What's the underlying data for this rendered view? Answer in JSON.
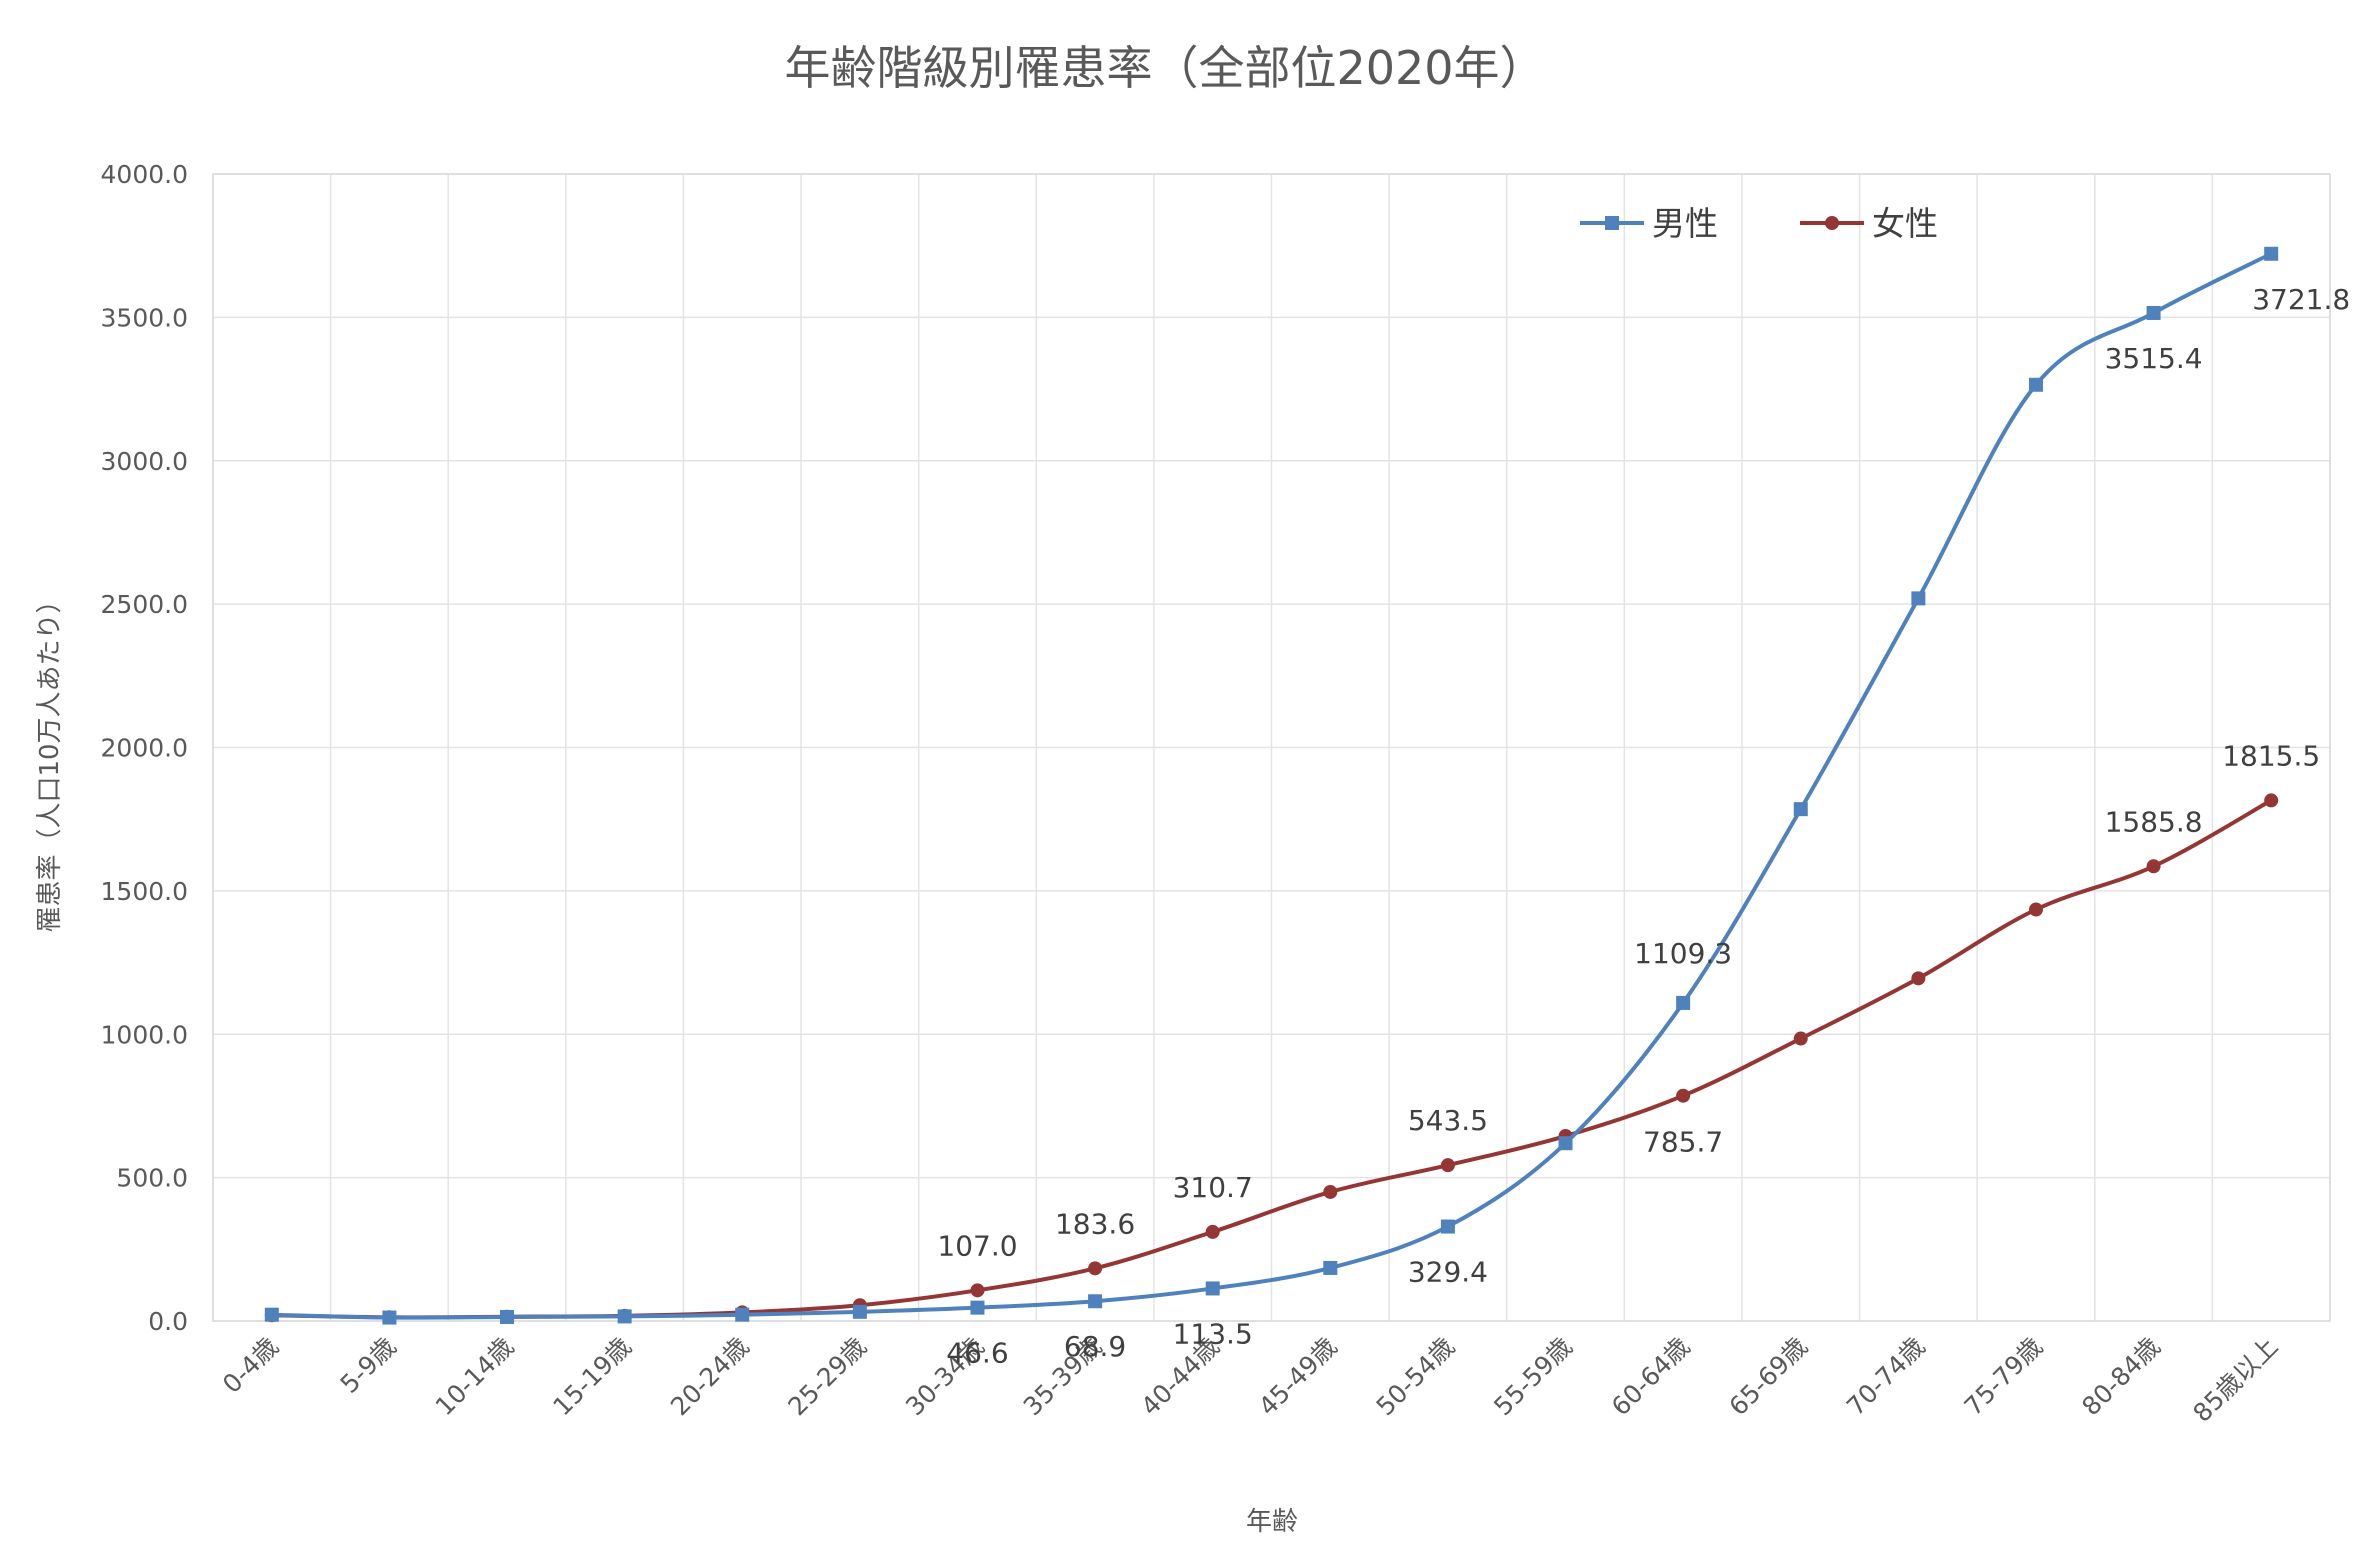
{
  "chart_data": {
    "type": "line",
    "title": "年齢階級別罹患率（全部位2020年）",
    "xlabel": "年齢",
    "ylabel": "罹患率（人口10万人あたり）",
    "ylim": [
      0,
      4000
    ],
    "y_ticks": [
      "0.0",
      "500.0",
      "1000.0",
      "1500.0",
      "2000.0",
      "2500.0",
      "3000.0",
      "3500.0",
      "4000.0"
    ],
    "grid": true,
    "legend_position": "top-right",
    "smooth": true,
    "categories": [
      "0-4歳",
      "5-9歳",
      "10-14歳",
      "15-19歳",
      "20-24歳",
      "25-29歳",
      "30-34歳",
      "35-39歳",
      "40-44歳",
      "45-49歳",
      "50-54歳",
      "55-59歳",
      "60-64歳",
      "65-69歳",
      "70-74歳",
      "75-79歳",
      "80-84歳",
      "85歳以上"
    ],
    "series": [
      {
        "name": "男性",
        "color": "#4F81BD",
        "marker": "square",
        "values": [
          22,
          12,
          14,
          16,
          22,
          32,
          46.6,
          68.9,
          113.5,
          185,
          329.4,
          620,
          1109.3,
          1785,
          2520,
          3265,
          3515.4,
          3721.8
        ],
        "labels": [
          null,
          null,
          null,
          null,
          null,
          null,
          "46.6",
          "68.9",
          "113.5",
          null,
          "329.4",
          null,
          "1109.3",
          null,
          null,
          null,
          "3515.4",
          "3721.8"
        ]
      },
      {
        "name": "女性",
        "color": "#943634",
        "marker": "circle",
        "values": [
          20,
          13,
          15,
          18,
          30,
          55,
          107.0,
          183.6,
          310.7,
          450,
          543.5,
          645,
          785.7,
          985,
          1195,
          1435,
          1585.8,
          1815.5
        ],
        "labels": [
          null,
          null,
          null,
          null,
          null,
          null,
          "107.0",
          "183.6",
          "310.7",
          null,
          "543.5",
          null,
          "785.7",
          null,
          null,
          null,
          "1585.8",
          "1815.5"
        ]
      }
    ]
  }
}
